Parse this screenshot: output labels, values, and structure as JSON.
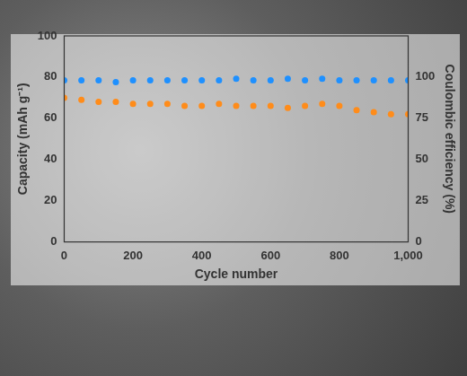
{
  "chart_data": {
    "type": "scatter",
    "x_label": "Cycle number",
    "y_label": "Capacity (mAh g⁻¹)",
    "y2_label": "Coulombic efficiency (%)",
    "xlim": [
      0,
      1000
    ],
    "xticks": [
      0,
      200,
      400,
      600,
      800,
      1000
    ],
    "ylim": [
      0,
      100
    ],
    "yticks": [
      0,
      20,
      40,
      60,
      80,
      100
    ],
    "y2lim": [
      0,
      125
    ],
    "y2ticks": [
      0,
      25,
      50,
      75,
      100
    ],
    "grid": false,
    "marker": "circle",
    "x": [
      0,
      50,
      100,
      150,
      200,
      250,
      300,
      350,
      400,
      450,
      500,
      550,
      600,
      650,
      700,
      750,
      800,
      850,
      900,
      950,
      1000
    ],
    "series": [
      {
        "color": "#ff8c1a",
        "values": [
          70,
          69,
          68,
          68,
          67,
          67,
          67,
          66,
          66,
          67,
          66,
          66,
          66,
          65,
          66,
          67,
          66,
          64,
          63,
          62,
          62
        ]
      },
      {
        "color": "#1e90ff",
        "axis": "y2",
        "values": [
          98,
          98,
          98,
          97,
          98,
          98,
          98,
          98,
          98,
          98,
          99,
          98,
          98,
          99,
          98,
          99,
          98,
          98,
          98,
          98,
          98
        ]
      }
    ]
  }
}
